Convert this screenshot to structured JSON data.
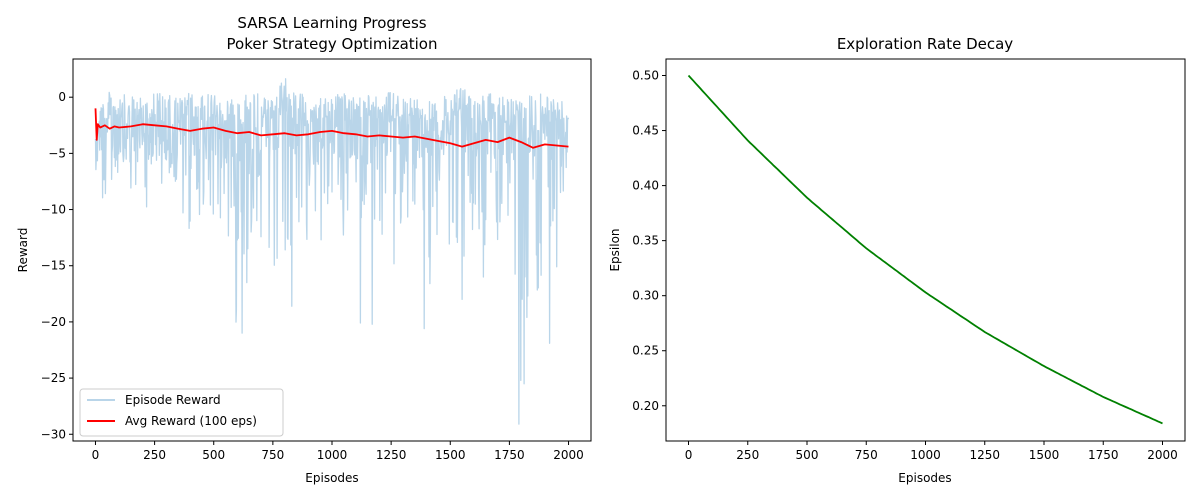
{
  "chart_data": [
    {
      "type": "line",
      "title": "SARSA Learning Progress",
      "subtitle": "Poker Strategy Optimization",
      "xlabel": "Episodes",
      "ylabel": "Reward",
      "xlim": [
        -95,
        2095
      ],
      "ylim": [
        -30.6,
        3.4
      ],
      "xticks": [
        0,
        250,
        500,
        750,
        1000,
        1250,
        1500,
        1750,
        2000
      ],
      "yticks": [
        0,
        -5,
        -10,
        -15,
        -20,
        -25,
        -30
      ],
      "legend_position": "lower-left",
      "grid": false,
      "series": [
        {
          "name": "Episode Reward",
          "color": "#b9d5e9",
          "kind": "noisy-band",
          "x": [
            0,
            50,
            100,
            150,
            200,
            250,
            300,
            350,
            400,
            450,
            500,
            550,
            600,
            650,
            700,
            750,
            800,
            850,
            900,
            950,
            1000,
            1050,
            1100,
            1150,
            1200,
            1250,
            1300,
            1350,
            1400,
            1450,
            1500,
            1550,
            1600,
            1650,
            1700,
            1750,
            1800,
            1850,
            1900,
            1950,
            2000
          ],
          "upper": [
            -0.5,
            0.5,
            0.4,
            0.0,
            0.3,
            0.6,
            0.2,
            0.0,
            0.5,
            0.1,
            0.5,
            0.0,
            0.1,
            0.5,
            0.3,
            0.4,
            1.8,
            0.5,
            0.1,
            0.4,
            0.3,
            0.3,
            0.4,
            0.3,
            0.4,
            0.5,
            0.3,
            0.0,
            0.2,
            0.0,
            0.2,
            1.0,
            0.0,
            0.3,
            0.3,
            -0.2,
            0.4,
            0.4,
            0.3,
            0.2,
            -0.4
          ],
          "lower": [
            -8.5,
            -11.0,
            -9.5,
            -10.0,
            -9.0,
            -12.0,
            -9.5,
            -10.0,
            -12.5,
            -11.0,
            -10.5,
            -14.0,
            -21.0,
            -13.0,
            -12.5,
            -16.0,
            -16.5,
            -18.5,
            -12.0,
            -14.5,
            -13.0,
            -12.5,
            -11.5,
            -11.0,
            -13.0,
            -16.0,
            -12.5,
            -10.0,
            -20.5,
            -14.5,
            -13.0,
            -18.0,
            -15.5,
            -14.0,
            -13.5,
            -15.0,
            -29.2,
            -15.0,
            -21.5,
            -16.0,
            -12.0
          ],
          "spikes": [
            {
              "x": 620,
              "y": -21.0
            },
            {
              "x": 535,
              "y": -15.3
            },
            {
              "x": 640,
              "y": -16.5
            },
            {
              "x": 805,
              "y": -16.6
            },
            {
              "x": 830,
              "y": -18.6
            },
            {
              "x": 1005,
              "y": -18.4
            },
            {
              "x": 1120,
              "y": -20.1
            },
            {
              "x": 1170,
              "y": -20.2
            },
            {
              "x": 1390,
              "y": -20.6
            },
            {
              "x": 1790,
              "y": -29.1
            },
            {
              "x": 1920,
              "y": -21.9
            },
            {
              "x": 1640,
              "y": -16.0
            },
            {
              "x": 1550,
              "y": -18.0
            }
          ]
        },
        {
          "name": "Avg Reward (100 eps)",
          "color": "#ff0000",
          "x": [
            0,
            5,
            10,
            20,
            40,
            60,
            80,
            100,
            150,
            200,
            250,
            300,
            350,
            400,
            450,
            500,
            550,
            600,
            650,
            700,
            750,
            800,
            850,
            900,
            950,
            1000,
            1050,
            1100,
            1150,
            1200,
            1250,
            1300,
            1350,
            1400,
            1450,
            1500,
            1550,
            1600,
            1650,
            1700,
            1750,
            1800,
            1850,
            1900,
            1950,
            2000
          ],
          "values": [
            -1.0,
            -3.8,
            -2.4,
            -2.7,
            -2.5,
            -2.8,
            -2.6,
            -2.7,
            -2.6,
            -2.4,
            -2.5,
            -2.6,
            -2.8,
            -3.0,
            -2.8,
            -2.7,
            -3.0,
            -3.2,
            -3.1,
            -3.4,
            -3.3,
            -3.2,
            -3.4,
            -3.3,
            -3.1,
            -3.0,
            -3.2,
            -3.3,
            -3.5,
            -3.4,
            -3.5,
            -3.6,
            -3.5,
            -3.7,
            -3.9,
            -4.1,
            -4.4,
            -4.1,
            -3.8,
            -4.0,
            -3.6,
            -4.0,
            -4.5,
            -4.2,
            -4.3,
            -4.4
          ]
        }
      ]
    },
    {
      "type": "line",
      "title": "Exploration Rate Decay",
      "xlabel": "Episodes",
      "ylabel": "Epsilon",
      "xlim": [
        -95,
        2095
      ],
      "ylim": [
        0.168,
        0.515
      ],
      "xticks": [
        0,
        250,
        500,
        750,
        1000,
        1250,
        1500,
        1750,
        2000
      ],
      "yticks": [
        0.5,
        0.45,
        0.4,
        0.35,
        0.3,
        0.25,
        0.2
      ],
      "ytick_labels": [
        "0.50",
        "0.45",
        "0.40",
        "0.35",
        "0.30",
        "0.25",
        "0.20"
      ],
      "grid": false,
      "series": [
        {
          "color": "#008000",
          "x": [
            0,
            250,
            500,
            750,
            1000,
            1250,
            1500,
            1750,
            2000
          ],
          "values": [
            0.5,
            0.441,
            0.389,
            0.343,
            0.303,
            0.267,
            0.236,
            0.208,
            0.184
          ]
        }
      ]
    }
  ]
}
